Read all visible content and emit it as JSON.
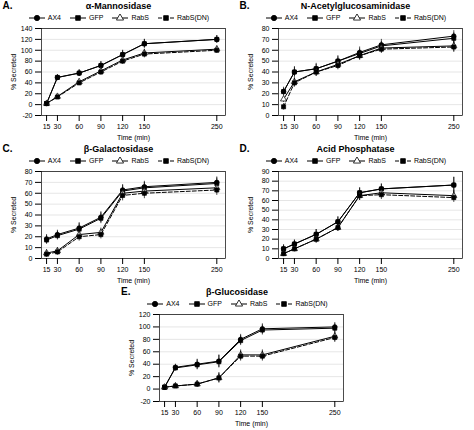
{
  "chart_data": [
    {
      "type": "line",
      "annotation": "A.",
      "title": "α-Mannosidase",
      "x_label": "Time (min)",
      "y_label": "% Secreted",
      "x": [
        15,
        30,
        60,
        90,
        120,
        150,
        250
      ],
      "xlim": [
        8,
        262
      ],
      "xticks": [
        15,
        30,
        60,
        90,
        120,
        150,
        250
      ],
      "ylim": [
        -20,
        140
      ],
      "yticks": [
        -20,
        0,
        20,
        40,
        60,
        80,
        100,
        120,
        140
      ],
      "grid": true,
      "legend": "top",
      "series": [
        {
          "name": "AX4",
          "color": "#000000",
          "marker": "circle",
          "line_style": "solid",
          "values": [
            2,
            50,
            58,
            72,
            92,
            112,
            120
          ],
          "err": [
            5,
            5,
            6,
            7,
            8,
            8,
            7
          ]
        },
        {
          "name": "GFP",
          "color": "#000000",
          "marker": "square",
          "line_style": "solid",
          "values": [
            2,
            50,
            58,
            72,
            92,
            112,
            120
          ],
          "err": [
            4,
            5,
            6,
            7,
            7,
            8,
            7
          ]
        },
        {
          "name": "RabS",
          "color": "#000000",
          "marker": "triangle-open",
          "line_style": "solid",
          "values": [
            2,
            15,
            42,
            62,
            82,
            95,
            102
          ],
          "err": [
            3,
            4,
            5,
            6,
            6,
            7,
            6
          ]
        },
        {
          "name": "RabS(DN)",
          "color": "#000000",
          "marker": "square",
          "line_style": "dashed",
          "values": [
            2,
            14,
            40,
            60,
            80,
            93,
            100
          ],
          "err": [
            3,
            4,
            5,
            6,
            6,
            7,
            6
          ]
        }
      ]
    },
    {
      "type": "line",
      "annotation": "B.",
      "title": "N-Acetylglucosaminidase",
      "x_label": "Time (min)",
      "y_label": "% Secreted",
      "x": [
        15,
        30,
        60,
        90,
        120,
        150,
        250
      ],
      "xlim": [
        8,
        262
      ],
      "xticks": [
        15,
        30,
        60,
        90,
        120,
        150,
        250
      ],
      "ylim": [
        0,
        80
      ],
      "yticks": [
        0,
        10,
        20,
        30,
        40,
        50,
        60,
        70,
        80
      ],
      "grid": true,
      "legend": "top",
      "series": [
        {
          "name": "AX4",
          "color": "#000000",
          "marker": "circle",
          "line_style": "solid",
          "values": [
            22,
            40,
            43,
            50,
            58,
            65,
            73
          ],
          "err": [
            4,
            5,
            5,
            5,
            5,
            5,
            5
          ]
        },
        {
          "name": "GFP",
          "color": "#000000",
          "marker": "square",
          "line_style": "solid",
          "values": [
            22,
            40,
            43,
            50,
            57,
            64,
            71
          ],
          "err": [
            3,
            4,
            4,
            4,
            4,
            4,
            5
          ]
        },
        {
          "name": "RabS",
          "color": "#000000",
          "marker": "triangle-open",
          "line_style": "solid",
          "values": [
            15,
            31,
            40,
            47,
            55,
            62,
            64
          ],
          "err": [
            3,
            4,
            4,
            4,
            4,
            4,
            5
          ]
        },
        {
          "name": "RabS(DN)",
          "color": "#000000",
          "marker": "square",
          "line_style": "dashed",
          "values": [
            8,
            30,
            40,
            46,
            55,
            61,
            63
          ],
          "err": [
            3,
            4,
            4,
            4,
            4,
            4,
            5
          ]
        }
      ]
    },
    {
      "type": "line",
      "annotation": "C.",
      "title": "β-Galactosidase",
      "x_label": "Time (min)",
      "y_label": "% Secreted",
      "x": [
        15,
        30,
        60,
        90,
        120,
        150,
        250
      ],
      "xlim": [
        8,
        262
      ],
      "xticks": [
        15,
        30,
        60,
        90,
        120,
        150,
        250
      ],
      "ylim": [
        0,
        80
      ],
      "yticks": [
        0,
        10,
        20,
        30,
        40,
        50,
        60,
        70,
        80
      ],
      "grid": true,
      "legend": "top",
      "series": [
        {
          "name": "AX4",
          "color": "#000000",
          "marker": "circle",
          "line_style": "solid",
          "values": [
            18,
            22,
            28,
            38,
            63,
            66,
            70
          ],
          "err": [
            4,
            4,
            5,
            5,
            5,
            5,
            5
          ]
        },
        {
          "name": "GFP",
          "color": "#000000",
          "marker": "square",
          "line_style": "solid",
          "values": [
            17,
            21,
            27,
            37,
            62,
            65,
            69
          ],
          "err": [
            4,
            4,
            5,
            5,
            5,
            5,
            5
          ]
        },
        {
          "name": "RabS",
          "color": "#000000",
          "marker": "triangle-open",
          "line_style": "solid",
          "values": [
            5,
            7,
            22,
            24,
            60,
            62,
            65
          ],
          "err": [
            3,
            3,
            4,
            4,
            5,
            5,
            5
          ]
        },
        {
          "name": "RabS(DN)",
          "color": "#000000",
          "marker": "square",
          "line_style": "dashed",
          "values": [
            4,
            6,
            20,
            22,
            58,
            60,
            63
          ],
          "err": [
            3,
            3,
            4,
            4,
            5,
            5,
            5
          ]
        }
      ]
    },
    {
      "type": "line",
      "annotation": "D.",
      "title": "Acid Phosphatase",
      "x_label": "Time (min)",
      "y_label": "% Secreted",
      "x": [
        15,
        30,
        60,
        90,
        120,
        150,
        250
      ],
      "xlim": [
        8,
        262
      ],
      "xticks": [
        15,
        30,
        60,
        90,
        120,
        150,
        250
      ],
      "ylim": [
        0,
        90
      ],
      "yticks": [
        0,
        10,
        20,
        30,
        40,
        50,
        60,
        70,
        80,
        90
      ],
      "grid": true,
      "legend": "top",
      "series": [
        {
          "name": "AX4",
          "color": "#000000",
          "marker": "circle",
          "line_style": "solid",
          "values": [
            10,
            15,
            25,
            38,
            68,
            72,
            76
          ],
          "err": [
            4,
            4,
            5,
            5,
            5,
            5,
            8
          ]
        },
        {
          "name": "GFP",
          "color": "#000000",
          "marker": "square",
          "line_style": "solid",
          "values": [
            10,
            15,
            25,
            38,
            68,
            72,
            76
          ],
          "err": [
            4,
            4,
            5,
            5,
            5,
            5,
            8
          ]
        },
        {
          "name": "RabS",
          "color": "#000000",
          "marker": "triangle-open",
          "line_style": "solid",
          "values": [
            5,
            10,
            20,
            32,
            65,
            68,
            65
          ],
          "err": [
            3,
            3,
            4,
            4,
            5,
            5,
            5
          ]
        },
        {
          "name": "RabS(DN)",
          "color": "#000000",
          "marker": "square",
          "line_style": "dashed",
          "values": [
            5,
            10,
            20,
            32,
            65,
            66,
            63
          ],
          "err": [
            3,
            3,
            4,
            4,
            5,
            5,
            5
          ]
        }
      ]
    },
    {
      "type": "line",
      "annotation": "E.",
      "title": "β-Glucosidase",
      "x_label": "Time (min)",
      "y_label": "% Secreted",
      "x": [
        15,
        30,
        60,
        90,
        120,
        150,
        250
      ],
      "xlim": [
        8,
        262
      ],
      "xticks": [
        15,
        30,
        60,
        90,
        120,
        150,
        250
      ],
      "ylim": [
        -20,
        120
      ],
      "yticks": [
        -20,
        0,
        20,
        40,
        60,
        80,
        100,
        120
      ],
      "grid": true,
      "legend": "top",
      "series": [
        {
          "name": "AX4",
          "color": "#000000",
          "marker": "circle",
          "line_style": "solid",
          "values": [
            3,
            35,
            40,
            45,
            80,
            97,
            100
          ],
          "err": [
            4,
            5,
            8,
            10,
            8,
            8,
            7
          ]
        },
        {
          "name": "GFP",
          "color": "#000000",
          "marker": "square",
          "line_style": "solid",
          "values": [
            3,
            34,
            39,
            44,
            78,
            95,
            98
          ],
          "err": [
            4,
            5,
            8,
            10,
            8,
            8,
            7
          ]
        },
        {
          "name": "RabS",
          "color": "#000000",
          "marker": "triangle-open",
          "line_style": "solid",
          "values": [
            3,
            5,
            8,
            18,
            55,
            55,
            85
          ],
          "err": [
            3,
            4,
            5,
            8,
            8,
            8,
            8
          ]
        },
        {
          "name": "RabS(DN)",
          "color": "#000000",
          "marker": "square",
          "line_style": "dashed",
          "values": [
            3,
            5,
            8,
            18,
            53,
            53,
            83
          ],
          "err": [
            3,
            4,
            5,
            8,
            8,
            8,
            8
          ]
        }
      ]
    }
  ]
}
